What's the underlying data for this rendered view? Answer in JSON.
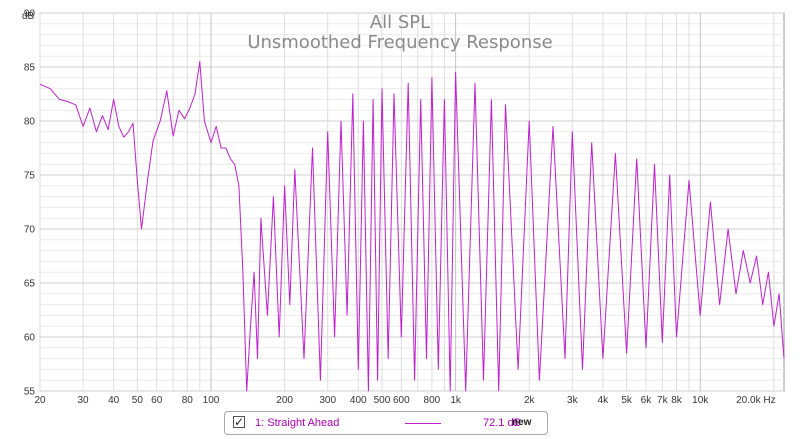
{
  "chart_data": {
    "type": "line",
    "title": "All SPL",
    "subtitle": "Unsmoothed Frequency Response",
    "ylabel": "dB",
    "xlabel": "Hz",
    "xscale": "log",
    "xlim": [
      20,
      22000
    ],
    "ylim": [
      55,
      90
    ],
    "grid": true,
    "x_ticks": [
      20,
      30,
      40,
      50,
      60,
      80,
      100,
      200,
      300,
      400,
      500,
      600,
      800,
      1000,
      2000,
      3000,
      4000,
      5000,
      6000,
      7000,
      8000,
      10000,
      20000
    ],
    "x_tick_labels": [
      "20",
      "30",
      "40",
      "50",
      "60",
      "80",
      "100",
      "200",
      "300",
      "400",
      "500",
      "600",
      "800",
      "1k",
      "2k",
      "3k",
      "4k",
      "5k",
      "6k",
      "7k",
      "8k",
      "10k",
      "20.0k Hz"
    ],
    "y_ticks": [
      55,
      60,
      65,
      70,
      75,
      80,
      85,
      90
    ],
    "y_tick_labels": [
      "55",
      "60",
      "65",
      "70",
      "75",
      "80",
      "85",
      "90"
    ],
    "series": [
      {
        "name": "1: Straight Ahead",
        "color": "#c020d0",
        "x": [
          20,
          22,
          24,
          26,
          28,
          30,
          32,
          34,
          36,
          38,
          40,
          42,
          44,
          46,
          48,
          50,
          52,
          55,
          58,
          62,
          66,
          70,
          74,
          78,
          82,
          86,
          90,
          94,
          100,
          105,
          110,
          115,
          120,
          125,
          130,
          135,
          140,
          145,
          150,
          155,
          160,
          170,
          180,
          190,
          200,
          210,
          220,
          240,
          260,
          280,
          300,
          320,
          340,
          360,
          380,
          400,
          420,
          440,
          460,
          480,
          500,
          530,
          560,
          600,
          640,
          680,
          720,
          760,
          800,
          850,
          900,
          950,
          1000,
          1100,
          1200,
          1300,
          1400,
          1500,
          1600,
          1800,
          2000,
          2200,
          2500,
          2800,
          3000,
          3300,
          3600,
          4000,
          4500,
          5000,
          5500,
          6000,
          6500,
          7000,
          7500,
          8000,
          9000,
          10000,
          11000,
          12000,
          13000,
          14000,
          15000,
          16000,
          17000,
          18000,
          19000,
          20000,
          21000,
          22000
        ],
        "y": [
          83.4,
          83.0,
          82.0,
          81.8,
          81.5,
          79.5,
          81.2,
          79.0,
          80.5,
          79.2,
          82.0,
          79.5,
          78.5,
          79.0,
          79.8,
          74.5,
          70.0,
          74.5,
          78.2,
          80.0,
          82.8,
          78.6,
          81.0,
          80.2,
          81.2,
          82.5,
          85.5,
          80.0,
          78.0,
          79.5,
          77.5,
          77.5,
          76.5,
          76.0,
          74.0,
          66.0,
          55.0,
          61.0,
          66.0,
          58.0,
          71.0,
          62.0,
          73.0,
          60.0,
          74.0,
          63.0,
          75.5,
          58.0,
          77.5,
          56.0,
          79.0,
          60.0,
          80.0,
          62.0,
          82.5,
          57.0,
          80.0,
          55.0,
          82.0,
          56.0,
          83.0,
          58.0,
          82.5,
          60.0,
          83.5,
          56.0,
          82.0,
          58.0,
          84.0,
          57.0,
          82.0,
          55.0,
          84.5,
          55.0,
          83.5,
          56.0,
          82.0,
          55.0,
          81.5,
          57.0,
          80.0,
          56.0,
          79.5,
          58.0,
          79.0,
          57.0,
          78.0,
          58.0,
          77.0,
          58.5,
          76.5,
          59.0,
          76.0,
          59.5,
          75.0,
          60.0,
          74.5,
          62.0,
          72.5,
          63.0,
          70.0,
          64.0,
          68.0,
          65.0,
          67.5,
          63.0,
          66.0,
          61.0,
          64.0,
          58.0
        ]
      }
    ]
  },
  "legend": {
    "checkbox": "✓",
    "entry_name": "1: Straight Ahead",
    "value": "72.1 dB",
    "tag": "new"
  }
}
